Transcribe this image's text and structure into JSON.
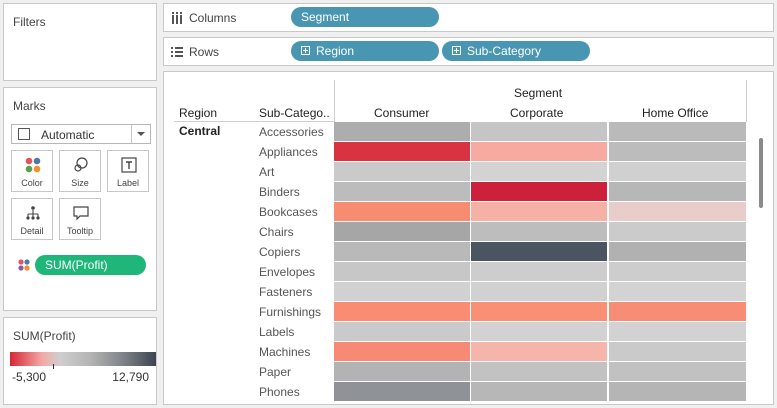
{
  "filters": {
    "title": "Filters"
  },
  "marks": {
    "title": "Marks",
    "mark_type": "Automatic",
    "buttons": [
      {
        "label": "Color",
        "icon": "color-dots-icon"
      },
      {
        "label": "Size",
        "icon": "size-icon"
      },
      {
        "label": "Label",
        "icon": "text-label-icon"
      },
      {
        "label": "Detail",
        "icon": "detail-icon"
      },
      {
        "label": "Tooltip",
        "icon": "tooltip-icon"
      }
    ],
    "color_pill": "SUM(Profit)"
  },
  "legend": {
    "title": "SUM(Profit)",
    "min": "-5,300",
    "max": "12,790",
    "colors": {
      "low": "#d62634",
      "mid": "#cfcfcf",
      "high": "#3d4450"
    }
  },
  "columns_shelf": {
    "label": "Columns",
    "pills": [
      "Segment"
    ]
  },
  "rows_shelf": {
    "label": "Rows",
    "pills": [
      "Region",
      "Sub-Category"
    ]
  },
  "view": {
    "header_group": "Segment",
    "region_header": "Region",
    "subcat_header": "Sub-Catego..",
    "segments": [
      "Consumer",
      "Corporate",
      "Home Office"
    ],
    "region": "Central",
    "rows": [
      {
        "name": "Accessories",
        "colors": [
          "#adadad",
          "#c5c5c5",
          "#bababa"
        ]
      },
      {
        "name": "Appliances",
        "colors": [
          "#d93341",
          "#f6aaa0",
          "#bcbcbc"
        ]
      },
      {
        "name": "Art",
        "colors": [
          "#cacaca",
          "#d3d3d3",
          "#d0d0d0"
        ]
      },
      {
        "name": "Binders",
        "colors": [
          "#bcbcbc",
          "#cd203a",
          "#b7b7b7"
        ]
      },
      {
        "name": "Bookcases",
        "colors": [
          "#f88c71",
          "#f5b1a6",
          "#e9cdca"
        ]
      },
      {
        "name": "Chairs",
        "colors": [
          "#a6a6a6",
          "#bdbdbd",
          "#cbcbcb"
        ]
      },
      {
        "name": "Copiers",
        "colors": [
          "#b9b9b9",
          "#4b5461",
          "#b1b1b1"
        ]
      },
      {
        "name": "Envelopes",
        "colors": [
          "#c7c7c7",
          "#cdcdcd",
          "#cdcdcd"
        ]
      },
      {
        "name": "Fasteners",
        "colors": [
          "#d1d1d1",
          "#d1d1d1",
          "#d3d3d3"
        ]
      },
      {
        "name": "Furnishings",
        "colors": [
          "#f98c73",
          "#f98f75",
          "#f88d75"
        ]
      },
      {
        "name": "Labels",
        "colors": [
          "#cacaca",
          "#d2d2d2",
          "#d2d2d2"
        ]
      },
      {
        "name": "Machines",
        "colors": [
          "#f78a74",
          "#f6b5ab",
          "#cacaca"
        ]
      },
      {
        "name": "Paper",
        "colors": [
          "#b3b3b3",
          "#c2c2c2",
          "#c1c1c1"
        ]
      },
      {
        "name": "Phones",
        "colors": [
          "#8f9297",
          "#b7b7b7",
          "#b5b5b5"
        ]
      }
    ]
  }
}
